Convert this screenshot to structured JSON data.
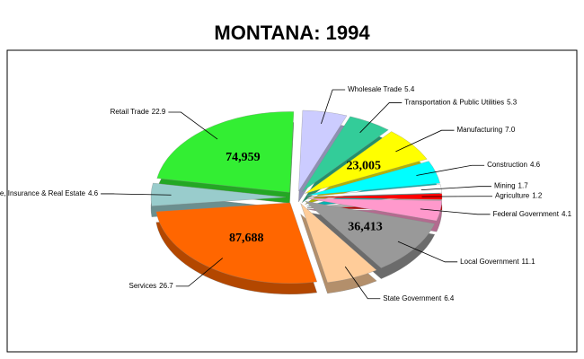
{
  "chart_data": {
    "type": "pie",
    "title": "MONTANA:  1994",
    "categories": [
      "Wholesale Trade",
      "Transportation & Public Utilities",
      "Manufacturing",
      "Construction",
      "Mining",
      "Agriculture",
      "Federal Government",
      "Local Government",
      "State Government",
      "Services",
      "Finance, Insurance & Real Estate",
      "Retail Trade"
    ],
    "values": [
      5.4,
      5.3,
      7.0,
      4.6,
      1.7,
      1.2,
      4.1,
      11.1,
      6.4,
      26.7,
      4.6,
      22.9
    ],
    "value_labels": [
      "5.4",
      "5.3",
      "7.0",
      "4.6",
      "1.7",
      "1.2",
      "4.1",
      "11.1",
      "6.4",
      "26.7",
      "4.6",
      "22.9"
    ],
    "colors": [
      "#ccccff",
      "#33cc99",
      "#ffff00",
      "#00ffff",
      "#ffffff",
      "#ff0000",
      "#ff99cc",
      "#999999",
      "#ffcc99",
      "#ff6600",
      "#99cccc",
      "#33ee33"
    ],
    "annotations": [
      "74,959",
      "23,005",
      "87,688",
      "36,413"
    ]
  }
}
